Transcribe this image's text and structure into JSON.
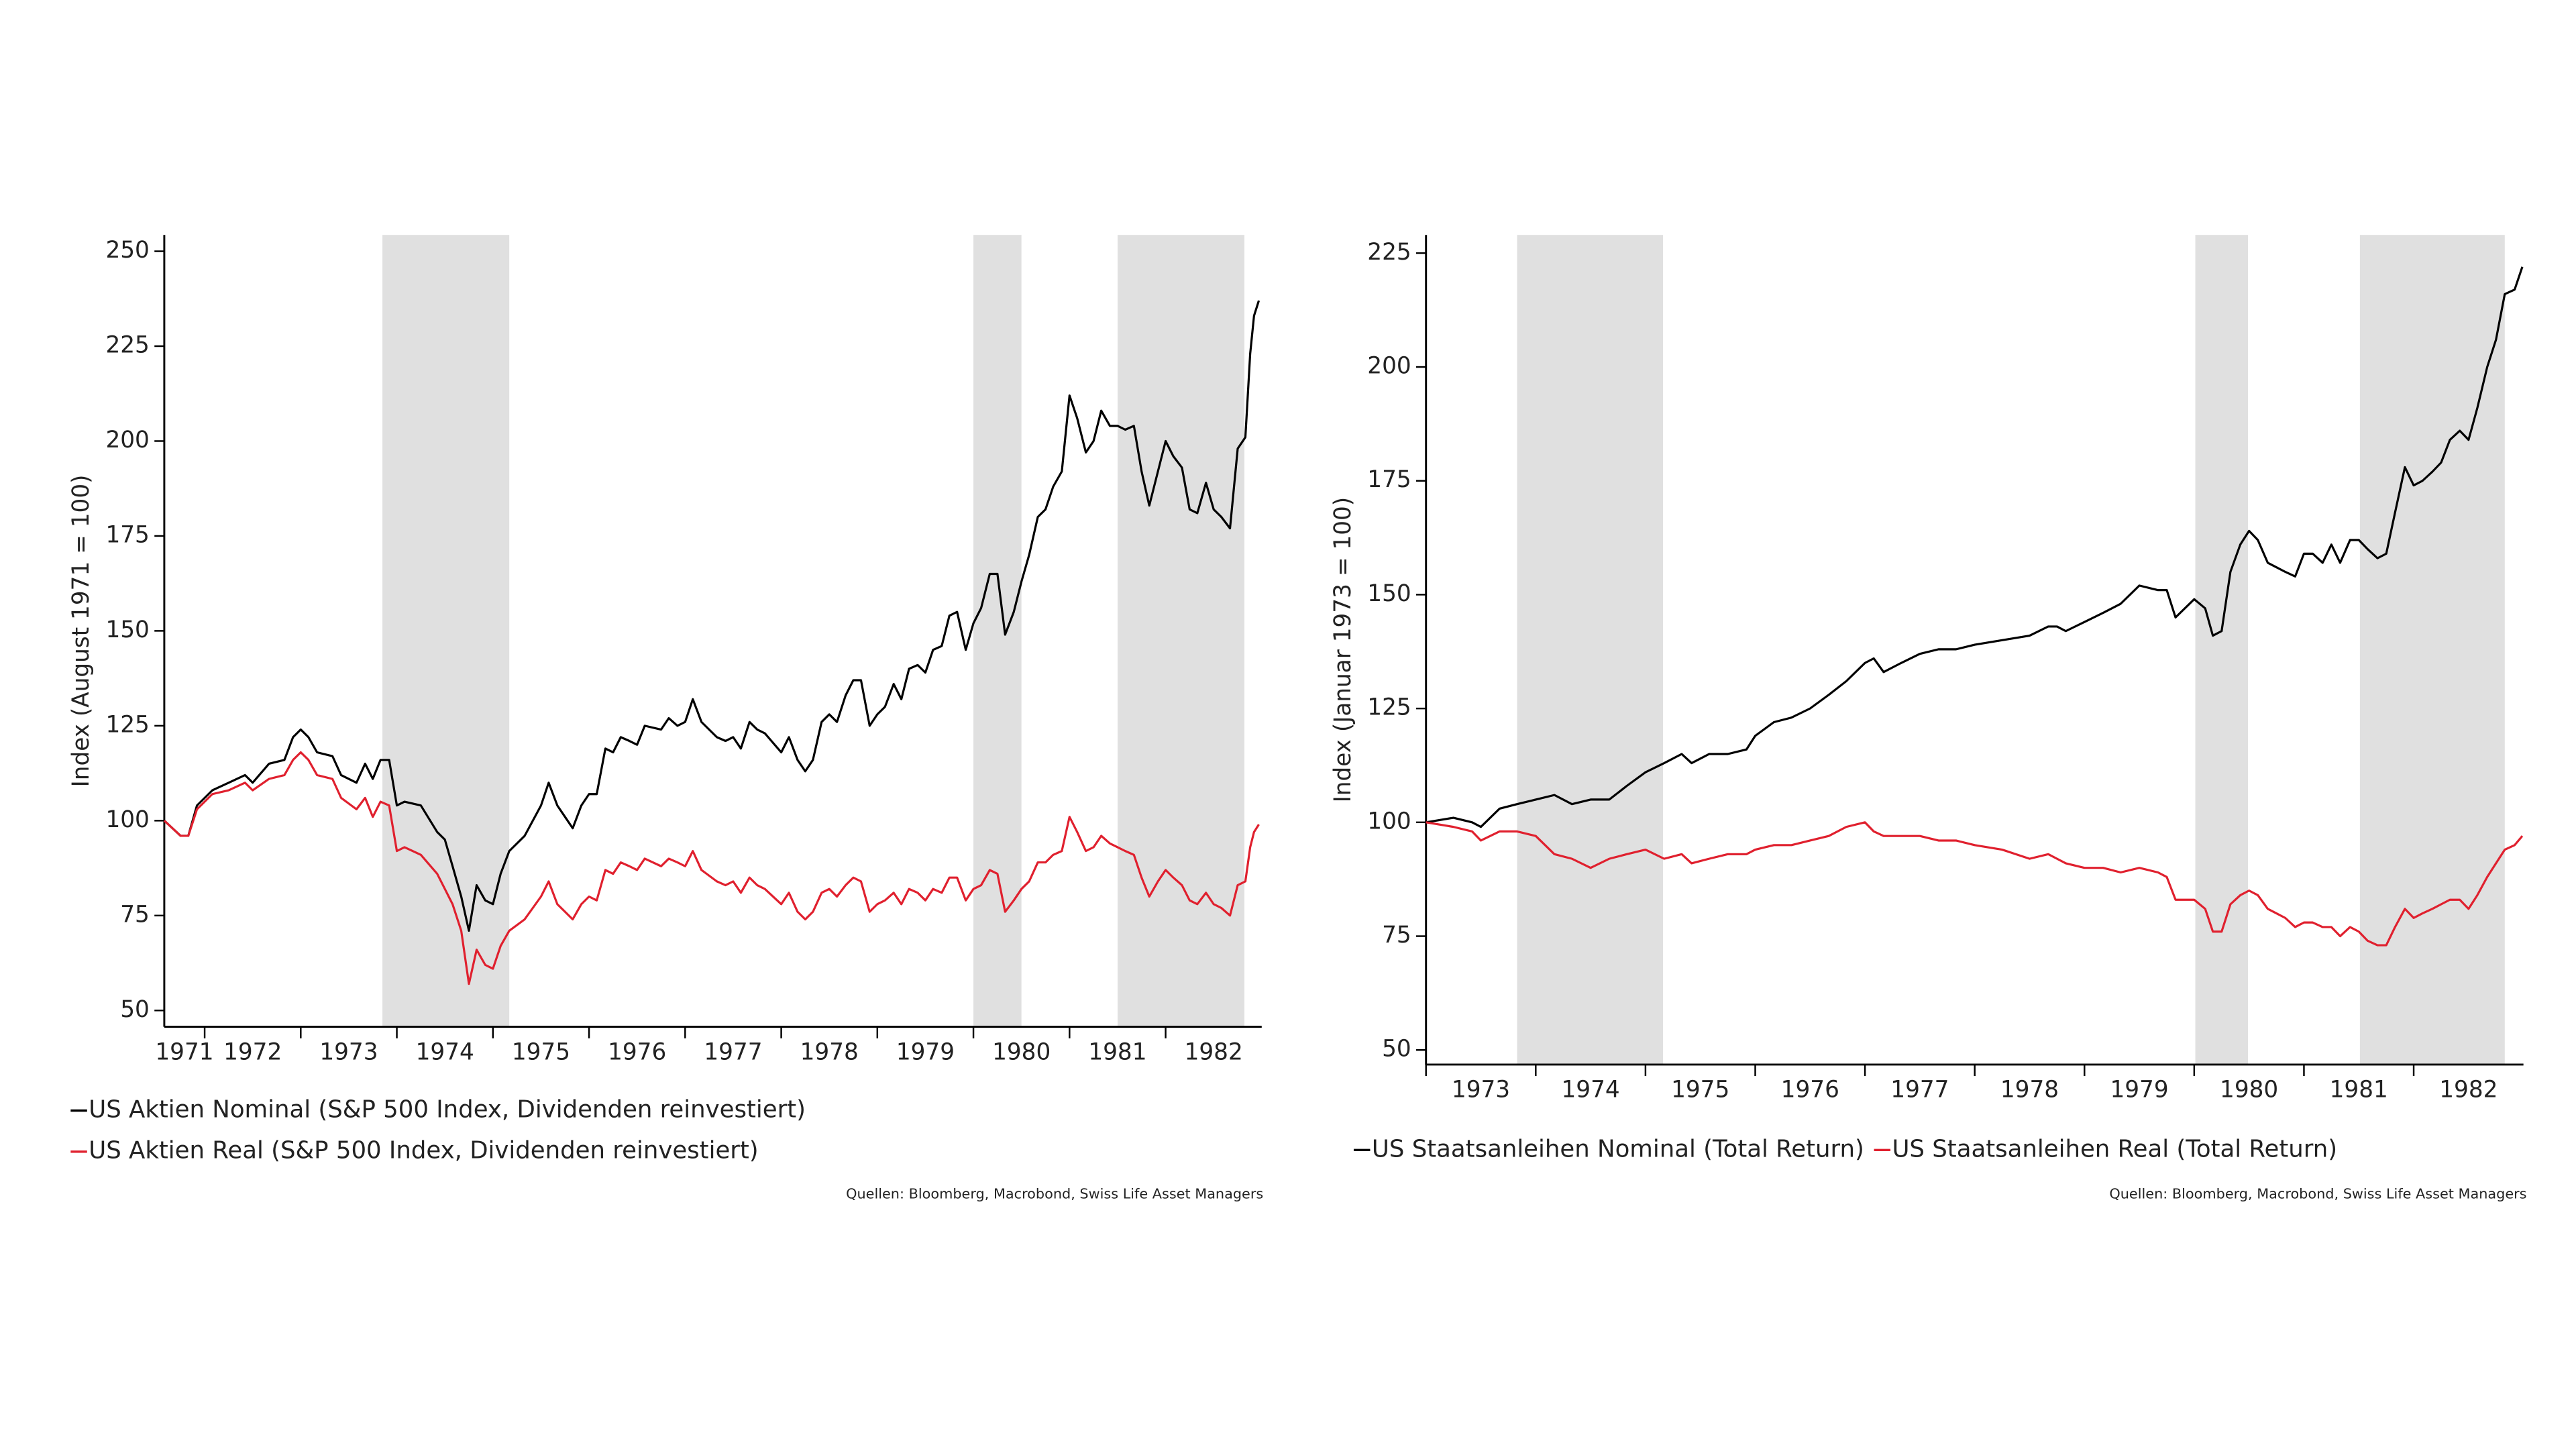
{
  "chart_data": [
    {
      "type": "line",
      "y_label": "Index (August 1971 = 100)",
      "source": "Quellen: Bloomberg, Macrobond, Swiss Life Asset Managers",
      "legend": "bottom",
      "legend_columns": 1,
      "xlim": [
        1971.58,
        1983.0
      ],
      "ylim": [
        45.7,
        254.3
      ],
      "xticks": [
        1971,
        1972,
        1973,
        1974,
        1975,
        1976,
        1977,
        1978,
        1979,
        1980,
        1981,
        1982
      ],
      "yticks": [
        50,
        75,
        100,
        125,
        150,
        175,
        200,
        225,
        250
      ],
      "shaded_periods": [
        [
          1973.85,
          1975.17
        ],
        [
          1980.0,
          1980.5
        ],
        [
          1981.5,
          1982.82
        ]
      ],
      "shade_color": "#e0e0e0",
      "x": [
        1971.58,
        1971.75,
        1971.83,
        1971.92,
        1972.08,
        1972.25,
        1972.42,
        1972.5,
        1972.67,
        1972.83,
        1972.92,
        1973.0,
        1973.08,
        1973.17,
        1973.33,
        1973.42,
        1973.58,
        1973.67,
        1973.75,
        1973.83,
        1973.92,
        1974.0,
        1974.08,
        1974.25,
        1974.42,
        1974.5,
        1974.58,
        1974.67,
        1974.75,
        1974.83,
        1974.92,
        1975.0,
        1975.08,
        1975.17,
        1975.33,
        1975.5,
        1975.58,
        1975.67,
        1975.75,
        1975.83,
        1975.92,
        1976.0,
        1976.08,
        1976.17,
        1976.25,
        1976.33,
        1976.42,
        1976.5,
        1976.58,
        1976.75,
        1976.83,
        1976.92,
        1977.0,
        1977.08,
        1977.17,
        1977.33,
        1977.42,
        1977.5,
        1977.58,
        1977.67,
        1977.75,
        1977.83,
        1978.0,
        1978.08,
        1978.17,
        1978.25,
        1978.33,
        1978.42,
        1978.5,
        1978.58,
        1978.67,
        1978.75,
        1978.83,
        1978.92,
        1979.0,
        1979.08,
        1979.17,
        1979.25,
        1979.33,
        1979.42,
        1979.5,
        1979.58,
        1979.67,
        1979.75,
        1979.83,
        1979.92,
        1980.0,
        1980.08,
        1980.17,
        1980.25,
        1980.33,
        1980.42,
        1980.5,
        1980.58,
        1980.67,
        1980.75,
        1980.83,
        1980.92,
        1981.0,
        1981.08,
        1981.17,
        1981.25,
        1981.33,
        1981.42,
        1981.5,
        1981.58,
        1981.67,
        1981.75,
        1981.83,
        1981.92,
        1982.0,
        1982.08,
        1982.17,
        1982.25,
        1982.33,
        1982.42,
        1982.5,
        1982.58,
        1982.67,
        1982.75,
        1982.83,
        1982.88,
        1982.92,
        1982.97
      ],
      "series": [
        {
          "name": "US Aktien Nominal (S&P 500 Index, Dividenden reinvestiert)",
          "color": "#000000",
          "values": [
            100,
            96,
            96,
            104,
            108,
            110,
            112,
            110,
            115,
            116,
            122,
            124,
            122,
            118,
            117,
            112,
            110,
            115,
            111,
            116,
            116,
            104,
            105,
            104,
            97,
            95,
            88,
            80,
            71,
            83,
            79,
            78,
            86,
            92,
            96,
            104,
            110,
            104,
            101,
            98,
            104,
            107,
            107,
            119,
            118,
            122,
            121,
            120,
            125,
            124,
            127,
            125,
            126,
            132,
            126,
            122,
            121,
            122,
            119,
            126,
            124,
            123,
            118,
            122,
            116,
            113,
            116,
            126,
            128,
            126,
            133,
            137,
            137,
            125,
            128,
            130,
            136,
            132,
            140,
            141,
            139,
            145,
            146,
            154,
            155,
            145,
            152,
            156,
            165,
            165,
            149,
            155,
            163,
            170,
            180,
            182,
            188,
            192,
            212,
            206,
            197,
            200,
            208,
            204,
            204,
            203,
            204,
            192,
            183,
            192,
            200,
            196,
            193,
            182,
            181,
            189,
            182,
            180,
            177,
            198,
            201,
            223,
            233,
            237
          ]
        },
        {
          "name": "US Aktien Real (S&P 500 Index, Dividenden reinvestiert)",
          "color": "#e0202e",
          "values": [
            100,
            96,
            96,
            103,
            107,
            108,
            110,
            108,
            111,
            112,
            116,
            118,
            116,
            112,
            111,
            106,
            103,
            106,
            101,
            105,
            104,
            92,
            93,
            91,
            86,
            82,
            78,
            71,
            57,
            66,
            62,
            61,
            67,
            71,
            74,
            80,
            84,
            78,
            76,
            74,
            78,
            80,
            79,
            87,
            86,
            89,
            88,
            87,
            90,
            88,
            90,
            89,
            88,
            92,
            87,
            84,
            83,
            84,
            81,
            85,
            83,
            82,
            78,
            81,
            76,
            74,
            76,
            81,
            82,
            80,
            83,
            85,
            84,
            76,
            78,
            79,
            81,
            78,
            82,
            81,
            79,
            82,
            81,
            85,
            85,
            79,
            82,
            83,
            87,
            86,
            76,
            79,
            82,
            84,
            89,
            89,
            91,
            92,
            101,
            97,
            92,
            93,
            96,
            94,
            93,
            92,
            91,
            85,
            80,
            84,
            87,
            85,
            83,
            79,
            78,
            81,
            78,
            77,
            75,
            83,
            84,
            93,
            97,
            99
          ]
        }
      ]
    },
    {
      "type": "line",
      "y_label": "Index (Januar 1973 = 100)",
      "source": "Quellen: Bloomberg, Macrobond, Swiss Life Asset Managers",
      "legend": "bottom",
      "legend_columns": 2,
      "xlim": [
        1973.0,
        1983.0
      ],
      "ylim": [
        46.8,
        229.0
      ],
      "xticks": [
        1973,
        1974,
        1975,
        1976,
        1977,
        1978,
        1979,
        1980,
        1981,
        1982
      ],
      "yticks": [
        50,
        75,
        100,
        125,
        150,
        175,
        200,
        225
      ],
      "shaded_periods": [
        [
          1973.83,
          1975.16
        ],
        [
          1980.01,
          1980.49
        ],
        [
          1981.51,
          1982.83
        ]
      ],
      "shade_color": "#e0e0e0",
      "x": [
        1973.0,
        1973.25,
        1973.42,
        1973.5,
        1973.67,
        1973.83,
        1974.0,
        1974.17,
        1974.33,
        1974.5,
        1974.67,
        1974.83,
        1975.0,
        1975.17,
        1975.33,
        1975.42,
        1975.58,
        1975.75,
        1975.92,
        1976.0,
        1976.17,
        1976.33,
        1976.5,
        1976.67,
        1976.83,
        1977.0,
        1977.08,
        1977.17,
        1977.33,
        1977.5,
        1977.67,
        1977.83,
        1978.0,
        1978.25,
        1978.5,
        1978.67,
        1978.75,
        1978.83,
        1979.0,
        1979.17,
        1979.33,
        1979.5,
        1979.67,
        1979.75,
        1979.83,
        1980.0,
        1980.1,
        1980.17,
        1980.25,
        1980.33,
        1980.42,
        1980.5,
        1980.58,
        1980.67,
        1980.75,
        1980.83,
        1980.92,
        1981.0,
        1981.08,
        1981.17,
        1981.25,
        1981.33,
        1981.42,
        1981.5,
        1981.58,
        1981.67,
        1981.75,
        1981.83,
        1981.92,
        1982.0,
        1982.08,
        1982.17,
        1982.25,
        1982.33,
        1982.42,
        1982.5,
        1982.58,
        1982.67,
        1982.75,
        1982.83,
        1982.92,
        1982.99
      ],
      "series": [
        {
          "name": "US Staatsanleihen Nominal (Total Return)",
          "color": "#000000",
          "values": [
            100,
            101,
            100,
            99,
            103,
            104,
            105,
            106,
            104,
            105,
            105,
            108,
            111,
            113,
            115,
            113,
            115,
            115,
            116,
            119,
            122,
            123,
            125,
            128,
            131,
            135,
            136,
            133,
            135,
            137,
            138,
            138,
            139,
            140,
            141,
            143,
            143,
            142,
            144,
            146,
            148,
            152,
            151,
            151,
            145,
            149,
            147,
            141,
            142,
            155,
            161,
            164,
            162,
            157,
            156,
            155,
            154,
            159,
            159,
            157,
            161,
            157,
            162,
            162,
            160,
            158,
            159,
            168,
            178,
            174,
            175,
            177,
            179,
            184,
            186,
            184,
            191,
            200,
            206,
            216,
            217,
            222
          ]
        },
        {
          "name": "US Staatsanleihen Real (Total Return)",
          "color": "#e0202e",
          "values": [
            100,
            99,
            98,
            96,
            98,
            98,
            97,
            93,
            92,
            90,
            92,
            93,
            94,
            92,
            93,
            91,
            92,
            93,
            93,
            94,
            95,
            95,
            96,
            97,
            99,
            100,
            98,
            97,
            97,
            97,
            96,
            96,
            95,
            94,
            92,
            93,
            92,
            91,
            90,
            90,
            89,
            90,
            89,
            88,
            83,
            83,
            81,
            76,
            76,
            82,
            84,
            85,
            84,
            81,
            80,
            79,
            77,
            78,
            78,
            77,
            77,
            75,
            77,
            76,
            74,
            73,
            73,
            77,
            81,
            79,
            80,
            81,
            82,
            83,
            83,
            81,
            84,
            88,
            91,
            94,
            95,
            97
          ]
        }
      ]
    }
  ]
}
